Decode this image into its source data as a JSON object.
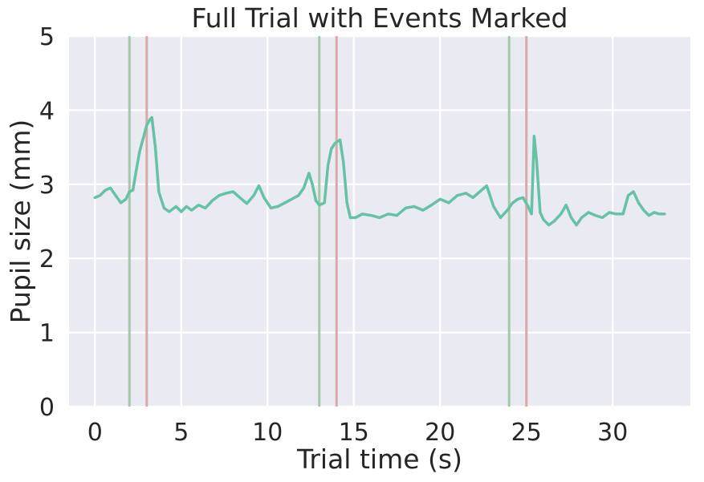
{
  "chart_data": {
    "type": "line",
    "title": "Full Trial with Events Marked",
    "xlabel": "Trial time (s)",
    "ylabel": "Pupil size (mm)",
    "xlim": [
      -1.5,
      34.5
    ],
    "ylim": [
      0,
      5
    ],
    "xticks": [
      0,
      5,
      10,
      15,
      20,
      25,
      30
    ],
    "yticks": [
      0,
      1,
      2,
      3,
      4,
      5
    ],
    "grid": true,
    "background": "#eaeaf2",
    "grid_color": "#ffffff",
    "series": [
      {
        "color": "#66c2a5",
        "x": [
          0,
          0.3,
          0.6,
          0.9,
          1.2,
          1.5,
          1.8,
          2.0,
          2.2,
          2.4,
          2.6,
          2.8,
          3.0,
          3.2,
          3.3,
          3.5,
          3.7,
          4.0,
          4.3,
          4.7,
          5.0,
          5.3,
          5.6,
          6.0,
          6.4,
          6.8,
          7.2,
          7.6,
          8.0,
          8.4,
          8.8,
          9.2,
          9.5,
          9.8,
          10.2,
          10.6,
          11.0,
          11.4,
          11.8,
          12.1,
          12.4,
          12.6,
          12.8,
          13.0,
          13.3,
          13.5,
          13.7,
          13.9,
          14.0,
          14.2,
          14.4,
          14.6,
          14.8,
          15.1,
          15.5,
          16.0,
          16.5,
          17.0,
          17.5,
          18.0,
          18.5,
          19.0,
          19.5,
          20.0,
          20.5,
          21.0,
          21.5,
          21.9,
          22.3,
          22.7,
          23.1,
          23.5,
          23.9,
          24.2,
          24.5,
          24.8,
          25.1,
          25.3,
          25.45,
          25.6,
          25.8,
          26.0,
          26.3,
          26.6,
          27.0,
          27.3,
          27.6,
          27.9,
          28.2,
          28.6,
          29.0,
          29.4,
          29.8,
          30.2,
          30.6,
          30.9,
          31.2,
          31.5,
          31.8,
          32.1,
          32.4,
          32.7,
          33.0
        ],
        "y": [
          2.82,
          2.85,
          2.92,
          2.95,
          2.85,
          2.75,
          2.8,
          2.9,
          2.92,
          3.2,
          3.45,
          3.62,
          3.8,
          3.88,
          3.9,
          3.5,
          2.9,
          2.68,
          2.63,
          2.7,
          2.63,
          2.7,
          2.65,
          2.72,
          2.68,
          2.78,
          2.85,
          2.88,
          2.9,
          2.82,
          2.74,
          2.85,
          2.98,
          2.82,
          2.68,
          2.7,
          2.75,
          2.8,
          2.85,
          2.95,
          3.15,
          3.0,
          2.78,
          2.72,
          2.75,
          3.25,
          3.48,
          3.55,
          3.57,
          3.6,
          3.3,
          2.75,
          2.55,
          2.55,
          2.6,
          2.58,
          2.55,
          2.6,
          2.58,
          2.68,
          2.7,
          2.65,
          2.72,
          2.8,
          2.75,
          2.85,
          2.88,
          2.82,
          2.9,
          2.98,
          2.7,
          2.55,
          2.65,
          2.75,
          2.8,
          2.82,
          2.7,
          2.6,
          3.65,
          3.3,
          2.62,
          2.52,
          2.45,
          2.5,
          2.6,
          2.72,
          2.55,
          2.45,
          2.55,
          2.62,
          2.58,
          2.55,
          2.62,
          2.6,
          2.6,
          2.85,
          2.9,
          2.75,
          2.65,
          2.58,
          2.62,
          2.6,
          2.6
        ]
      }
    ],
    "vlines": [
      {
        "x": 2.0,
        "color": "#a3c9ab"
      },
      {
        "x": 3.0,
        "color": "#d9a9aa"
      },
      {
        "x": 13.0,
        "color": "#a3c9ab"
      },
      {
        "x": 14.0,
        "color": "#d9a9aa"
      },
      {
        "x": 24.0,
        "color": "#a3c9ab"
      },
      {
        "x": 25.0,
        "color": "#d9a9aa"
      }
    ]
  }
}
